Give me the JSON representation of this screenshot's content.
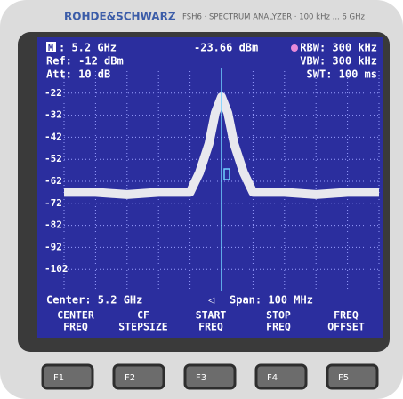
{
  "header": {
    "brand": "ROHDE&SCHWARZ",
    "model": "FSH6 · SPECTRUM ANALYZER · 100 kHz ... 6 GHz"
  },
  "screen": {
    "marker_label": "M",
    "marker_freq": ": 5.2 GHz",
    "marker_level": "-23.66 dBm",
    "ref": "Ref: -12 dBm",
    "att": "Att: 10 dB",
    "rbw": "RBW: 300 kHz",
    "vbw": "VBW: 300 kHz",
    "swt": "SWT: 100 ms",
    "center": "Center: 5.2 GHz",
    "span": "Span: 100 MHz"
  },
  "chart_data": {
    "type": "line",
    "x": [
      5.15,
      5.16,
      5.17,
      5.18,
      5.19,
      5.193,
      5.196,
      5.198,
      5.2,
      5.202,
      5.204,
      5.207,
      5.21,
      5.22,
      5.23,
      5.24,
      5.25
    ],
    "series": [
      {
        "color": "#e8e8ee",
        "values": [
          -67,
          -67,
          -68,
          -67,
          -67,
          -58,
          -45,
          -31,
          -23.66,
          -31,
          -45,
          -58,
          -67,
          -67,
          -68,
          -67,
          -67
        ]
      }
    ],
    "xlim": [
      5.15,
      5.25
    ],
    "ylim": [
      -112,
      -12
    ],
    "yticks": [
      -22,
      -32,
      -42,
      -52,
      -62,
      -72,
      -82,
      -92,
      -102
    ],
    "grid": true
  },
  "softkeys": [
    [
      "CENTER",
      "FREQ"
    ],
    [
      "CF",
      "STEPSIZE"
    ],
    [
      "START",
      "FREQ"
    ],
    [
      "STOP",
      "FREQ"
    ],
    [
      "FREQ",
      "OFFSET"
    ]
  ],
  "function_keys": [
    "F1",
    "F2",
    "F3",
    "F4",
    "F5"
  ]
}
